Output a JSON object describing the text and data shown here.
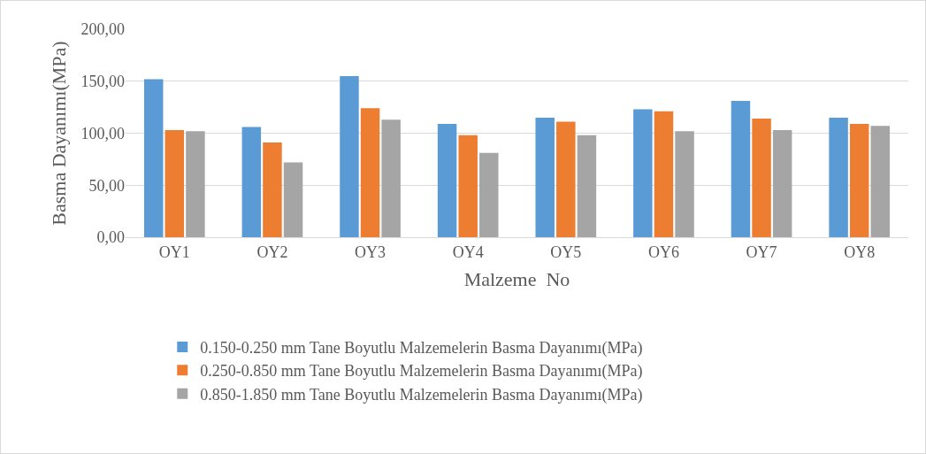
{
  "chart_data": {
    "type": "bar",
    "xlabel": "Malzeme  No",
    "ylabel": "Basma Dayanımı(MPa)",
    "categories": [
      "OY1",
      "OY2",
      "OY3",
      "OY4",
      "OY5",
      "OY6",
      "OY7",
      "OY8"
    ],
    "series": [
      {
        "name": "0.150-0.250 mm Tane Boyutlu Malzemelerin Basma Dayanımı(MPa)",
        "color": "#5b9bd5",
        "values": [
          152,
          106,
          155,
          109,
          115,
          123,
          131,
          115
        ]
      },
      {
        "name": "0.250-0.850 mm Tane Boyutlu Malzemelerin Basma Dayanımı(MPa)",
        "color": "#ed7d31",
        "values": [
          103,
          91,
          124,
          98,
          111,
          121,
          114,
          109
        ]
      },
      {
        "name": "0.850-1.850 mm Tane Boyutlu Malzemelerin Basma Dayanımı(MPa)",
        "color": "#a5a5a5",
        "values": [
          102,
          72,
          113,
          81,
          98,
          102,
          103,
          107
        ]
      }
    ],
    "ylim": [
      0,
      200
    ],
    "yticks": [
      {
        "value": 0,
        "label": "0,00"
      },
      {
        "value": 50,
        "label": "50,00"
      },
      {
        "value": 100,
        "label": "100,00"
      },
      {
        "value": 150,
        "label": "150,00"
      },
      {
        "value": 200,
        "label": "200,00"
      }
    ],
    "grid": "y",
    "legend": "bottom"
  }
}
